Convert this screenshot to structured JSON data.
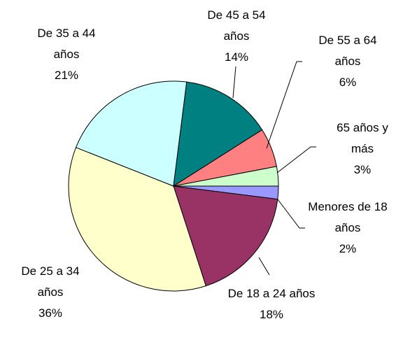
{
  "chart_data": {
    "type": "pie",
    "categories": [
      "Menores de 18 años",
      "De 18 a 24 años",
      "De 25 a 34 años",
      "De 35 a 44 años",
      "De 45 a 54 años",
      "De 55 a 64 años",
      "65 años y más"
    ],
    "values": [
      2,
      18,
      36,
      21,
      14,
      6,
      3
    ],
    "value_labels": [
      "2%",
      "18%",
      "36%",
      "21%",
      "14%",
      "6%",
      "3%"
    ],
    "colors": [
      "#9999ff",
      "#993366",
      "#ffffcc",
      "#ccffff",
      "#008080",
      "#ff8080",
      "#ccffcc"
    ]
  }
}
